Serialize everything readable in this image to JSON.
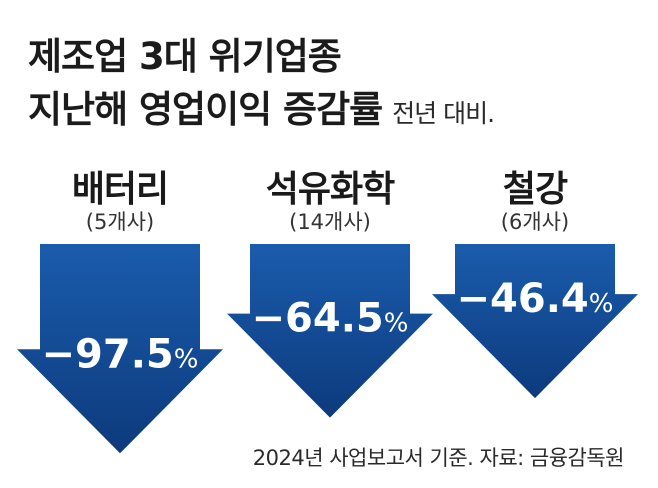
{
  "title_line1": "제조업 3대 위기업종",
  "title_line2": "지난해 영업이익 증감률",
  "subtitle": "전년 대비.",
  "source": "2024년 사업보고서 기준. 자료: 금융감독원",
  "colors": {
    "arrow_top": "#1a5cad",
    "arrow_bottom": "#0d3a7c",
    "text_on_arrow": "#ffffff"
  },
  "chart_data": {
    "type": "bar",
    "categories": [
      "배터리",
      "석유화학",
      "철강"
    ],
    "category_notes": [
      "(5개사)",
      "(14개사)",
      "(6개사)"
    ],
    "values": [
      -97.5,
      -64.5,
      -46.4
    ],
    "value_labels": [
      "−97.5%",
      "−64.5%",
      "−46.4%"
    ],
    "unit": "%"
  }
}
